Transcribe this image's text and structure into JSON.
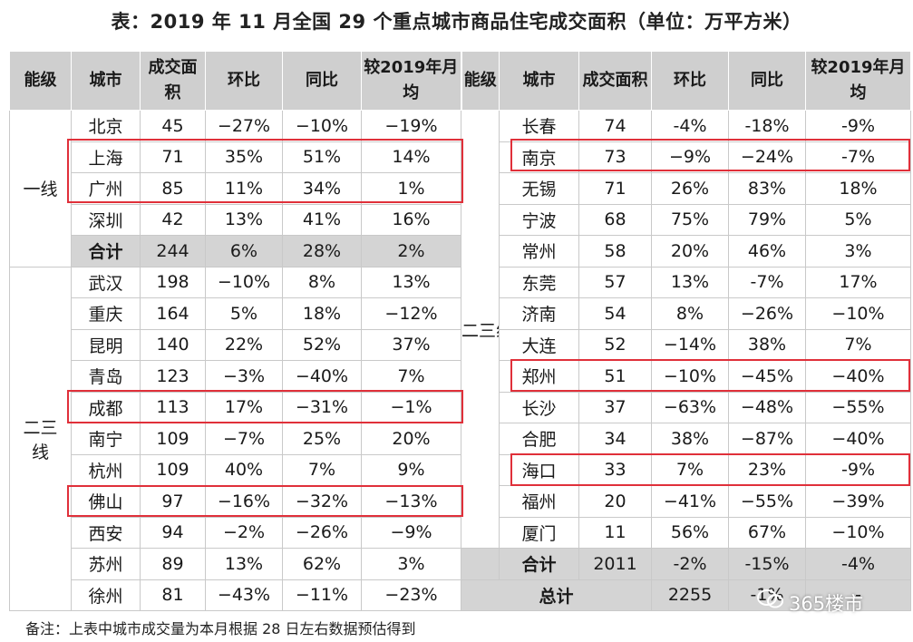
{
  "title": "表：2019 年 11 月全国 29 个重点城市商品住宅成交面积（单位：万平方米）",
  "headers": {
    "level": "能级",
    "city": "城市",
    "area": "成交面积",
    "mom": "环比",
    "yoy": "同比",
    "vs_avg": "较2019年月均",
    "level_right": "能级",
    "area_right": "成交面积"
  },
  "left": {
    "tier1": {
      "label": "一线",
      "rows": [
        {
          "city": "北京",
          "area": "45",
          "mom": "−27%",
          "yoy": "−10%",
          "avg": "−19%"
        },
        {
          "city": "上海",
          "area": "71",
          "mom": "35%",
          "yoy": "51%",
          "avg": "14%"
        },
        {
          "city": "广州",
          "area": "85",
          "mom": "11%",
          "yoy": "34%",
          "avg": "1%"
        },
        {
          "city": "深圳",
          "area": "42",
          "mom": "13%",
          "yoy": "41%",
          "avg": "16%"
        }
      ],
      "subtotal": {
        "label": "合计",
        "area": "244",
        "mom": "6%",
        "yoy": "28%",
        "avg": "2%"
      }
    },
    "tier23": {
      "label": "二三线",
      "rows": [
        {
          "city": "武汉",
          "area": "198",
          "mom": "−10%",
          "yoy": "8%",
          "avg": "13%"
        },
        {
          "city": "重庆",
          "area": "164",
          "mom": "5%",
          "yoy": "18%",
          "avg": "−12%"
        },
        {
          "city": "昆明",
          "area": "140",
          "mom": "22%",
          "yoy": "52%",
          "avg": "37%"
        },
        {
          "city": "青岛",
          "area": "123",
          "mom": "−3%",
          "yoy": "−40%",
          "avg": "7%"
        },
        {
          "city": "成都",
          "area": "113",
          "mom": "17%",
          "yoy": "−31%",
          "avg": "−1%"
        },
        {
          "city": "南宁",
          "area": "109",
          "mom": "−7%",
          "yoy": "25%",
          "avg": "20%"
        },
        {
          "city": "杭州",
          "area": "109",
          "mom": "40%",
          "yoy": "7%",
          "avg": "9%"
        },
        {
          "city": "佛山",
          "area": "97",
          "mom": "−16%",
          "yoy": "−32%",
          "avg": "−13%"
        },
        {
          "city": "西安",
          "area": "94",
          "mom": "−2%",
          "yoy": "−26%",
          "avg": "−9%"
        },
        {
          "city": "苏州",
          "area": "89",
          "mom": "13%",
          "yoy": "62%",
          "avg": "3%"
        },
        {
          "city": "徐州",
          "area": "81",
          "mom": "−43%",
          "yoy": "−11%",
          "avg": "−23%"
        }
      ]
    }
  },
  "right": {
    "tier23_label": "二三线",
    "rows": [
      {
        "city": "长春",
        "area": "74",
        "mom": "-4%",
        "yoy": "-18%",
        "avg": "-9%"
      },
      {
        "city": "南京",
        "area": "73",
        "mom": "−9%",
        "yoy": "−24%",
        "avg": "-7%"
      },
      {
        "city": "无锡",
        "area": "71",
        "mom": "26%",
        "yoy": "83%",
        "avg": "18%"
      },
      {
        "city": "宁波",
        "area": "68",
        "mom": "75%",
        "yoy": "79%",
        "avg": "5%"
      },
      {
        "city": "常州",
        "area": "58",
        "mom": "20%",
        "yoy": "46%",
        "avg": "3%"
      },
      {
        "city": "东莞",
        "area": "57",
        "mom": "13%",
        "yoy": "-7%",
        "avg": "17%"
      },
      {
        "city": "济南",
        "area": "54",
        "mom": "8%",
        "yoy": "−26%",
        "avg": "−10%"
      },
      {
        "city": "大连",
        "area": "52",
        "mom": "−14%",
        "yoy": "38%",
        "avg": "7%"
      },
      {
        "city": "郑州",
        "area": "51",
        "mom": "−10%",
        "yoy": "−45%",
        "avg": "−40%"
      },
      {
        "city": "长沙",
        "area": "37",
        "mom": "−63%",
        "yoy": "−48%",
        "avg": "−55%"
      },
      {
        "city": "合肥",
        "area": "34",
        "mom": "38%",
        "yoy": "−87%",
        "avg": "−40%"
      },
      {
        "city": "海口",
        "area": "33",
        "mom": "7%",
        "yoy": "23%",
        "avg": "-9%"
      },
      {
        "city": "福州",
        "area": "20",
        "mom": "−41%",
        "yoy": "−55%",
        "avg": "−39%"
      },
      {
        "city": "厦门",
        "area": "11",
        "mom": "56%",
        "yoy": "67%",
        "avg": "−10%"
      }
    ],
    "subtotal": {
      "label": "合计",
      "area": "2011",
      "mom": "-2%",
      "yoy": "-15%",
      "avg": "-4%"
    },
    "total": {
      "label": "总计",
      "area": "2255",
      "mom": "-1%",
      "yoy": "-",
      "avg": ""
    }
  },
  "note": "备注：上表中城市成交量为本月根据 28 日左右数据预估得到",
  "watermark": "365楼市",
  "colors": {
    "highlight": "#e0303a",
    "header_bg": "#cfcfcf",
    "subtotal_bg": "#d4d4d4"
  }
}
